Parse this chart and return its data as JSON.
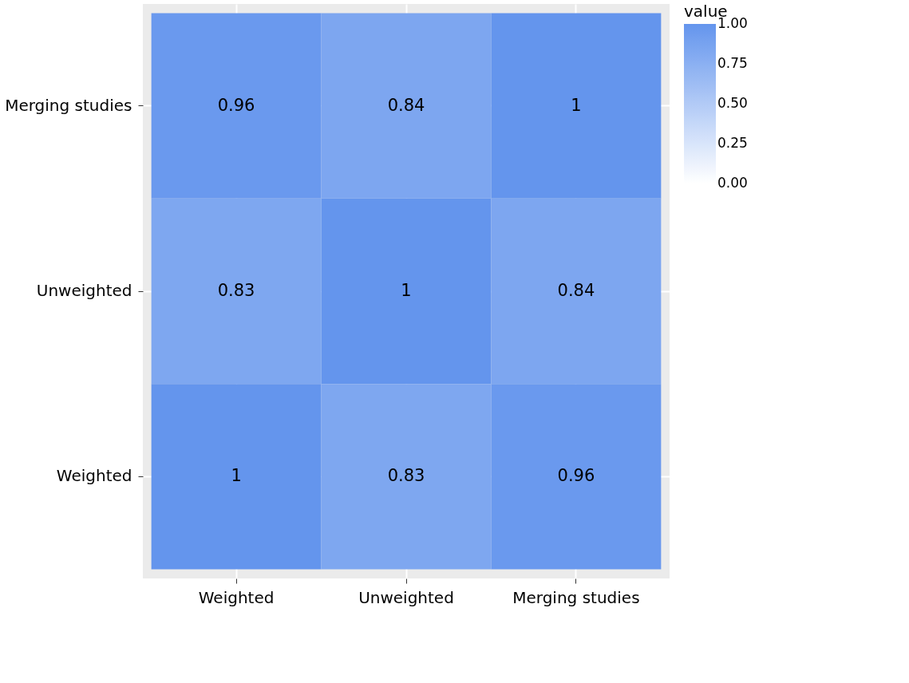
{
  "chart_data": {
    "type": "heatmap",
    "categories": [
      "Weighted",
      "Unweighted",
      "Merging studies"
    ],
    "y_categories": [
      "Merging studies",
      "Unweighted",
      "Weighted"
    ],
    "cells": [
      [
        0.96,
        0.84,
        1
      ],
      [
        0.83,
        1,
        0.84
      ],
      [
        1,
        0.83,
        0.96
      ]
    ],
    "data_labels": true,
    "legend_title": "value",
    "clim": [
      0,
      1
    ],
    "cticks": [
      {
        "value": 0,
        "label": "0.00"
      },
      {
        "value": 0.25,
        "label": "0.25"
      },
      {
        "value": 0.5,
        "label": "0.50"
      },
      {
        "value": 0.75,
        "label": "0.75"
      },
      {
        "value": 1,
        "label": "1.00"
      }
    ],
    "colors": [
      "#ffffff",
      "#6495ed"
    ],
    "grid": true
  }
}
